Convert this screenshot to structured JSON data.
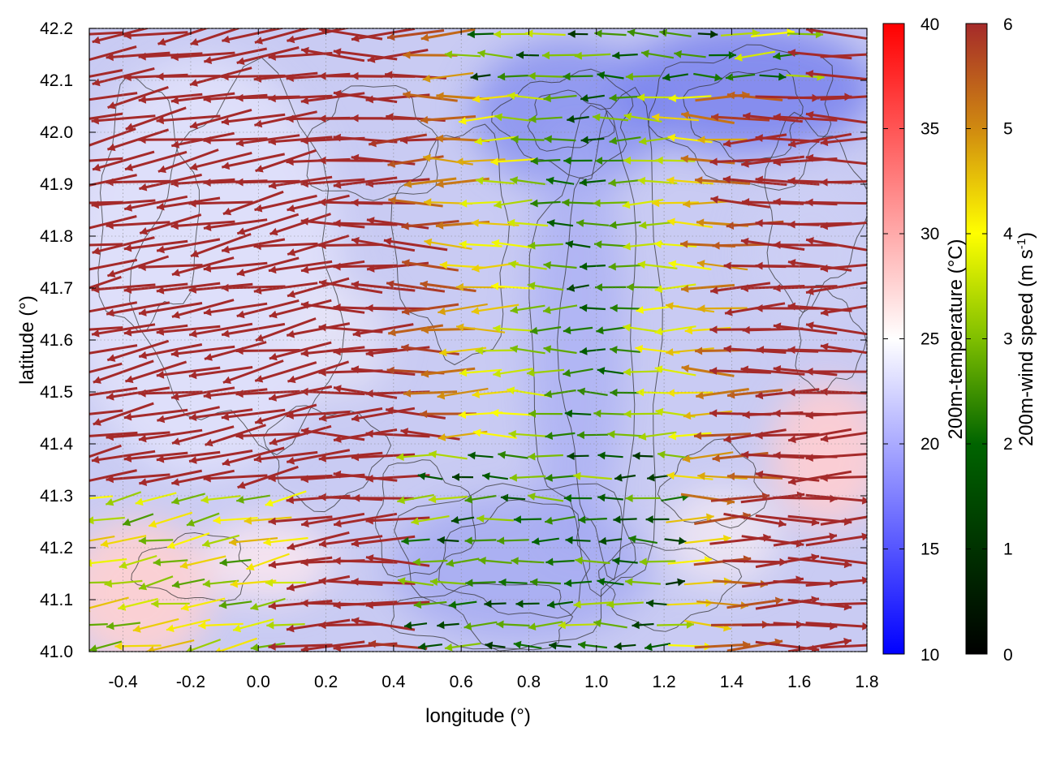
{
  "chart_data": {
    "type": "heatmap",
    "subtype": "vector-field-with-contours",
    "xlabel": "longitude (°)",
    "ylabel": "latitude (°)",
    "xlim": [
      -0.5,
      1.8
    ],
    "ylim": [
      41.0,
      42.2
    ],
    "xticks": [
      "-0.4",
      "-0.2",
      "0.0",
      "0.2",
      "0.4",
      "0.6",
      "0.8",
      "1.0",
      "1.2",
      "1.4",
      "1.6",
      "1.8"
    ],
    "xtick_values": [
      -0.4,
      -0.2,
      0.0,
      0.2,
      0.4,
      0.6,
      0.8,
      1.0,
      1.2,
      1.4,
      1.6,
      1.8
    ],
    "yticks": [
      "41.0",
      "41.1",
      "41.2",
      "41.3",
      "41.4",
      "41.5",
      "41.6",
      "41.7",
      "41.8",
      "41.9",
      "42.0",
      "42.1",
      "42.2"
    ],
    "ytick_values": [
      41.0,
      41.1,
      41.2,
      41.3,
      41.4,
      41.5,
      41.6,
      41.7,
      41.8,
      41.9,
      42.0,
      42.1,
      42.2
    ],
    "temperature_colorbar": {
      "label": "200m-temperature (°C)",
      "range": [
        10,
        40
      ],
      "ticks": [
        "10",
        "15",
        "20",
        "25",
        "30",
        "35",
        "40"
      ],
      "tick_values": [
        10,
        15,
        20,
        25,
        30,
        35,
        40
      ],
      "colors": {
        "low": "#0000ff",
        "mid": "#ffffff",
        "high": "#ff0000"
      }
    },
    "wind_colorbar": {
      "label_main": "200m-wind speed (m s",
      "label_sup": "-1",
      "label_end": ")",
      "range": [
        0,
        6
      ],
      "ticks": [
        "0",
        "1",
        "2",
        "3",
        "4",
        "5",
        "6"
      ],
      "tick_values": [
        0,
        1,
        2,
        3,
        4,
        5,
        6
      ],
      "colors": [
        "#000000",
        "#006400",
        "#7fbf00",
        "#ffff00",
        "#d08a10",
        "#a52a2a"
      ]
    },
    "field_description": {
      "temperature_typical": 20,
      "cool_valley_center_lon": 0.95,
      "warm_patch_southwest": {
        "lon": -0.35,
        "lat": 41.15,
        "value": 27
      },
      "warm_patch_east": {
        "lon": 1.65,
        "lat": 41.35,
        "value": 27
      },
      "wind_direction": "westward (easterly flow), weaker in central valley"
    }
  }
}
